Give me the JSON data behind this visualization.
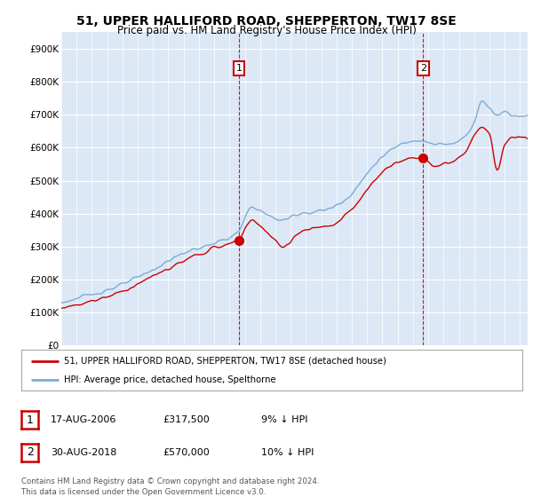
{
  "title": "51, UPPER HALLIFORD ROAD, SHEPPERTON, TW17 8SE",
  "subtitle": "Price paid vs. HM Land Registry's House Price Index (HPI)",
  "ylabel_ticks": [
    "£0",
    "£100K",
    "£200K",
    "£300K",
    "£400K",
    "£500K",
    "£600K",
    "£700K",
    "£800K",
    "£900K"
  ],
  "ytick_values": [
    0,
    100000,
    200000,
    300000,
    400000,
    500000,
    600000,
    700000,
    800000,
    900000
  ],
  "ylim": [
    0,
    950000
  ],
  "xlim_start": 1995.0,
  "xlim_end": 2025.5,
  "plot_bg_color": "#dce8f5",
  "fig_bg_color": "#ffffff",
  "line1_color": "#cc0000",
  "line2_color": "#7aabda",
  "vline_color": "#cc0000",
  "transaction1_x": 2006.63,
  "transaction1_y": 317500,
  "transaction2_x": 2018.66,
  "transaction2_y": 570000,
  "vline1_x": 2006.63,
  "vline2_x": 2018.66,
  "legend_label1": "51, UPPER HALLIFORD ROAD, SHEPPERTON, TW17 8SE (detached house)",
  "legend_label2": "HPI: Average price, detached house, Spelthorne",
  "footer1": "Contains HM Land Registry data © Crown copyright and database right 2024.",
  "footer2": "This data is licensed under the Open Government Licence v3.0.",
  "table_row1": [
    "1",
    "17-AUG-2006",
    "£317,500",
    "9% ↓ HPI"
  ],
  "table_row2": [
    "2",
    "30-AUG-2018",
    "£570,000",
    "10% ↓ HPI"
  ]
}
